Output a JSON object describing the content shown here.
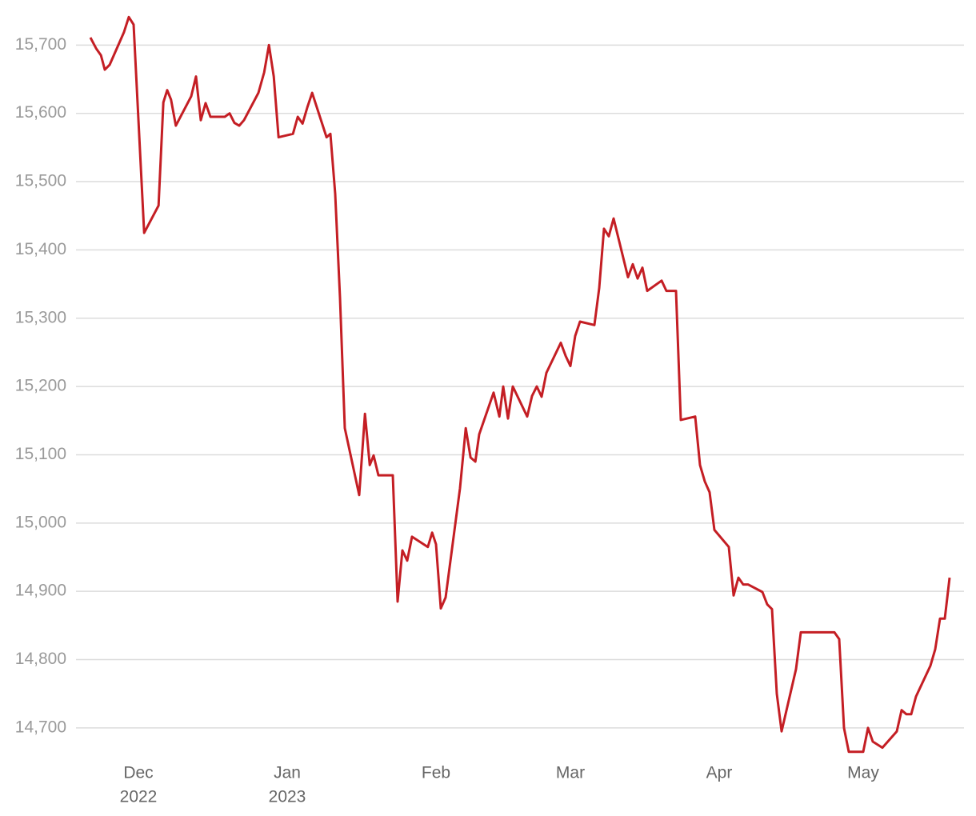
{
  "chart_data": {
    "type": "line",
    "color": "#c41e24",
    "x": [
      -10,
      -8.8,
      -7.8,
      -7,
      -6,
      -3,
      -2,
      -1,
      1.2,
      4.2,
      5.2,
      6,
      6.8,
      7.8,
      11,
      12,
      13,
      14,
      15,
      18,
      19,
      20,
      21,
      22,
      25,
      26.2,
      27.2,
      28.2,
      29.2,
      32.2,
      33.2,
      34.2,
      35.2,
      36.2,
      39.2,
      40,
      41,
      42,
      43,
      46,
      47.2,
      48.2,
      49,
      50,
      53,
      54,
      55,
      56,
      57,
      60.3,
      61.2,
      62,
      63,
      64,
      67,
      68.2,
      69.2,
      70.2,
      71,
      74,
      75.2,
      76,
      77,
      78,
      81,
      82,
      83,
      84,
      85,
      88,
      89,
      90,
      91,
      92,
      95,
      96,
      97,
      98,
      99,
      102,
      103,
      104,
      105,
      106,
      109,
      110,
      112,
      113,
      116,
      117,
      118,
      119,
      120,
      123,
      124,
      125,
      126,
      127,
      130,
      131,
      132,
      133,
      134,
      137,
      138,
      145,
      146,
      147,
      148,
      151,
      152,
      153,
      155,
      158,
      159,
      160,
      161,
      162,
      165,
      166,
      167,
      168,
      169
    ],
    "values": [
      15711,
      15695,
      15685,
      15664,
      15671,
      15719,
      15741,
      15730,
      15425,
      15465,
      15616,
      15634,
      15620,
      15582,
      15625,
      15654,
      15590,
      15615,
      15595,
      15595,
      15600,
      15586,
      15582,
      15590,
      15630,
      15660,
      15700,
      15654,
      15565,
      15570,
      15595,
      15585,
      15609,
      15630,
      15565,
      15570,
      15482,
      15330,
      15139,
      15041,
      15160,
      15085,
      15099,
      15070,
      15070,
      14885,
      14960,
      14945,
      14980,
      14965,
      14986,
      14969,
      14875,
      14891,
      15051,
      15139,
      15096,
      15090,
      15130,
      15191,
      15156,
      15200,
      15153,
      15200,
      15156,
      15186,
      15200,
      15185,
      15220,
      15264,
      15245,
      15230,
      15274,
      15295,
      15290,
      15344,
      15431,
      15420,
      15446,
      15360,
      15379,
      15358,
      15374,
      15340,
      15355,
      15340,
      15340,
      15151,
      15156,
      15085,
      15061,
      15045,
      14990,
      14965,
      14894,
      14920,
      14910,
      14910,
      14899,
      14881,
      14874,
      14750,
      14695,
      14786,
      14840,
      14840,
      14830,
      14700,
      14665,
      14665,
      14700,
      14680,
      14671,
      14695,
      14726,
      14720,
      14720,
      14746,
      14791,
      14815,
      14860,
      14860,
      14920
    ],
    "xlim": [
      -13,
      172
    ],
    "xticks": [
      {
        "value": 0,
        "label": [
          "Dec",
          "2022"
        ]
      },
      {
        "value": 31,
        "label": [
          "Jan",
          "2023"
        ]
      },
      {
        "value": 62,
        "label": [
          "Feb"
        ]
      },
      {
        "value": 90,
        "label": [
          "Mar"
        ]
      },
      {
        "value": 121,
        "label": [
          "Apr"
        ]
      },
      {
        "value": 151,
        "label": [
          "May"
        ]
      }
    ],
    "ylim": [
      14653,
      15766
    ],
    "yticks": [
      {
        "value": 14700,
        "label": "14,700"
      },
      {
        "value": 14800,
        "label": "14,800"
      },
      {
        "value": 14900,
        "label": "14,900"
      },
      {
        "value": 15000,
        "label": "15,000"
      },
      {
        "value": 15100,
        "label": "15,100"
      },
      {
        "value": 15200,
        "label": "15,200"
      },
      {
        "value": 15300,
        "label": "15,300"
      },
      {
        "value": 15400,
        "label": "15,400"
      },
      {
        "value": 15500,
        "label": "15,500"
      },
      {
        "value": 15600,
        "label": "15,600"
      },
      {
        "value": 15700,
        "label": "15,700"
      }
    ],
    "grid": true
  }
}
